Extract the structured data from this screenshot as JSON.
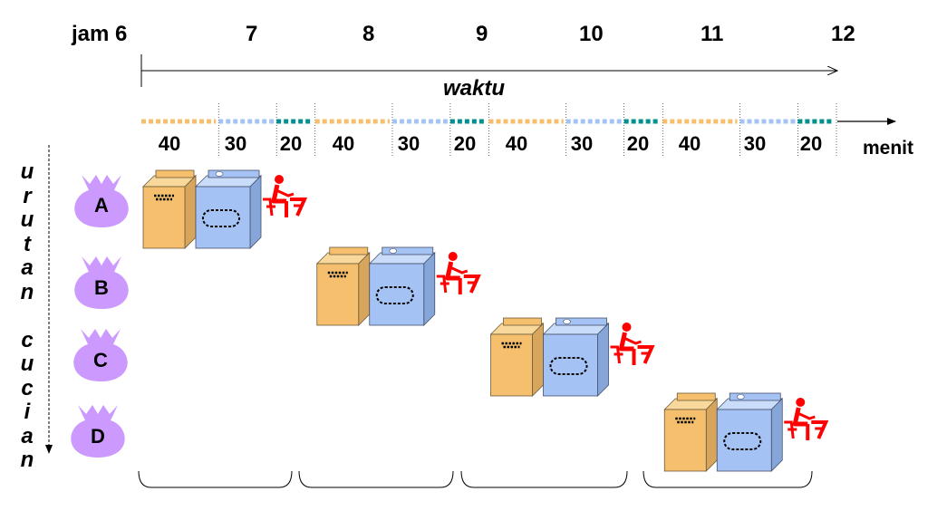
{
  "time_axis": {
    "hours": [
      {
        "label": "jam 6",
        "value": 6
      },
      {
        "label": "7",
        "value": 7
      },
      {
        "label": "8",
        "value": 8
      },
      {
        "label": "9",
        "value": 9
      },
      {
        "label": "10",
        "value": 10
      },
      {
        "label": "11",
        "value": 11
      },
      {
        "label": "12",
        "value": 12
      }
    ],
    "title": "waktu",
    "unit": "menit"
  },
  "stages": [
    {
      "name": "wash",
      "minutes": 40,
      "color": "#f5bf6e"
    },
    {
      "name": "dry",
      "minutes": 30,
      "color": "#a4c2f4"
    },
    {
      "name": "fold",
      "minutes": 20,
      "color": "#00918e"
    }
  ],
  "segment_labels": [
    "40",
    "30",
    "20",
    "40",
    "30",
    "20",
    "40",
    "30",
    "20",
    "40",
    "30",
    "20"
  ],
  "vertical_label": [
    "u",
    "r",
    "u",
    "t",
    "a",
    "n",
    "",
    "c",
    "u",
    "c",
    "i",
    "a",
    "n"
  ],
  "loads": [
    {
      "label": "A",
      "start_minute": 0
    },
    {
      "label": "B",
      "start_minute": 90
    },
    {
      "label": "C",
      "start_minute": 180
    },
    {
      "label": "D",
      "start_minute": 270
    }
  ],
  "colors": {
    "bag": "#cc99ff",
    "washer": "#f5bf6e",
    "dryer": "#a4c2f4",
    "person": "#ff0000",
    "text": "#000000"
  }
}
